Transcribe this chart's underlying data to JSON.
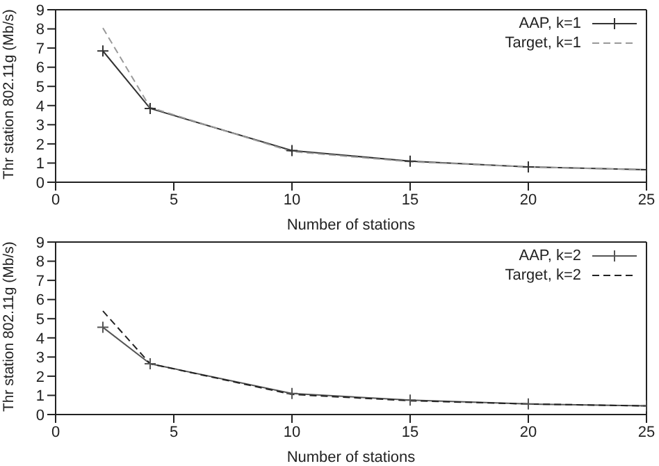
{
  "chart_data": [
    {
      "type": "line",
      "x": [
        2,
        4,
        10,
        15,
        20,
        25
      ],
      "xlabel": "Number of stations",
      "ylabel": "Thr station 802.11g (Mb/s)",
      "xlim": [
        0,
        25
      ],
      "xticks": [
        0,
        5,
        10,
        15,
        20,
        25
      ],
      "ylim": [
        0,
        9
      ],
      "yticks": [
        0,
        1,
        2,
        3,
        4,
        5,
        6,
        7,
        8,
        9
      ],
      "grid": false,
      "legend": "top right",
      "series": [
        {
          "name": "AAP, k=1",
          "color": "#333333",
          "marker": "cross",
          "line_style": "solid",
          "values": [
            6.85,
            3.85,
            1.65,
            1.1,
            0.8,
            0.65
          ]
        },
        {
          "name": "Target, k=1",
          "color": "#999999",
          "marker": "none",
          "line_style": "dashed",
          "values": [
            8.05,
            3.9,
            1.6,
            1.07,
            0.8,
            0.65
          ]
        }
      ]
    },
    {
      "type": "line",
      "x": [
        2,
        4,
        10,
        15,
        20,
        25
      ],
      "xlabel": "Number of stations",
      "ylabel": "Thr station 802.11g (Mb/s)",
      "xlim": [
        0,
        25
      ],
      "xticks": [
        0,
        5,
        10,
        15,
        20,
        25
      ],
      "ylim": [
        0,
        9
      ],
      "yticks": [
        0,
        1,
        2,
        3,
        4,
        5,
        6,
        7,
        8,
        9
      ],
      "grid": false,
      "legend": "top right",
      "series": [
        {
          "name": "AAP, k=2",
          "color": "#555555",
          "marker": "cross",
          "line_style": "solid",
          "values": [
            4.55,
            2.65,
            1.1,
            0.75,
            0.55,
            0.45
          ]
        },
        {
          "name": "Target, k=2",
          "color": "#222222",
          "marker": "none",
          "line_style": "dashed",
          "values": [
            5.4,
            2.65,
            1.05,
            0.72,
            0.55,
            0.45
          ]
        }
      ]
    }
  ]
}
